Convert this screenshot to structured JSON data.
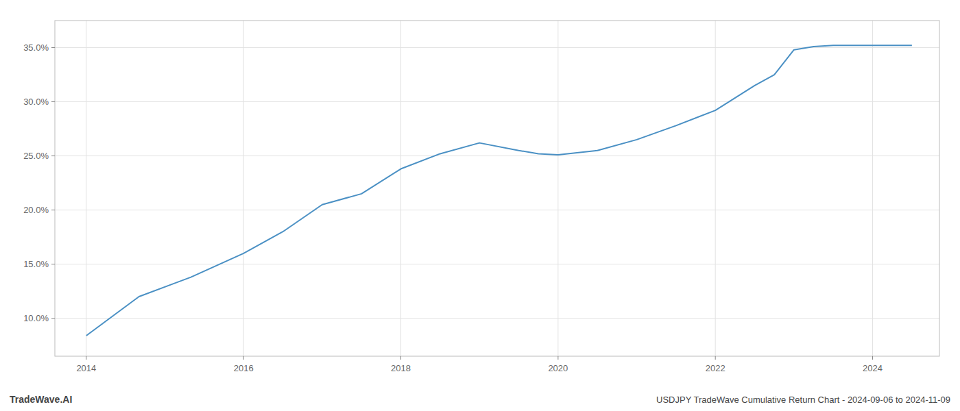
{
  "chart_data": {
    "type": "line",
    "x": [
      2014.0,
      2014.67,
      2015.33,
      2016.0,
      2016.5,
      2017.0,
      2017.5,
      2018.0,
      2018.5,
      2019.0,
      2019.5,
      2019.75,
      2020.0,
      2020.5,
      2021.0,
      2021.5,
      2022.0,
      2022.5,
      2022.75,
      2023.0,
      2023.25,
      2023.5,
      2024.0,
      2024.5
    ],
    "values": [
      8.4,
      12.0,
      13.8,
      16.0,
      18.0,
      20.5,
      21.5,
      23.8,
      25.2,
      26.2,
      25.5,
      25.2,
      25.1,
      25.5,
      26.5,
      27.8,
      29.2,
      31.5,
      32.5,
      34.8,
      35.1,
      35.2,
      35.2,
      35.2
    ],
    "color": "#4a90c4",
    "xlim": [
      2013.6,
      2024.85
    ],
    "ylim": [
      6.5,
      37.5
    ],
    "xticks": [
      2014,
      2016,
      2018,
      2020,
      2022,
      2024
    ],
    "yticks": [
      {
        "value": 10.0,
        "label": "10.0%"
      },
      {
        "value": 15.0,
        "label": "15.0%"
      },
      {
        "value": 20.0,
        "label": "20.0%"
      },
      {
        "value": 25.0,
        "label": "25.0%"
      },
      {
        "value": 30.0,
        "label": "30.0%"
      },
      {
        "value": 35.0,
        "label": "35.0%"
      }
    ],
    "grid": true,
    "annotations": [
      "TradeWave.AI",
      "USDJPY TradeWave Cumulative Return Chart - 2024-09-06 to 2024-11-09"
    ]
  }
}
